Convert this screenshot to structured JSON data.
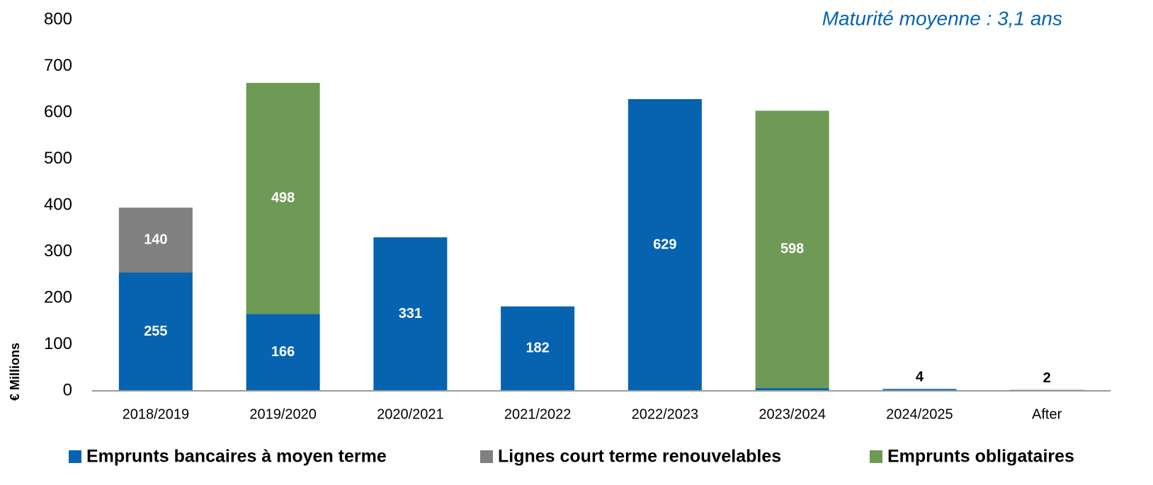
{
  "chart_data": {
    "type": "stacked-bar",
    "subtitle": "Maturité moyenne : 3,1 ans",
    "y_label": "€ Millions",
    "categories": [
      "2018/2019",
      "2019/2020",
      "2020/2021",
      "2021/2022",
      "2022/2023",
      "2023/2024",
      "2024/2025",
      "After"
    ],
    "series": [
      {
        "name": "Emprunts bancaires à moyen terme",
        "color": "#0563b0",
        "values": [
          255,
          166,
          331,
          182,
          629,
          6,
          4,
          2
        ]
      },
      {
        "name": "Lignes court terme renouvelables",
        "color": "#808080",
        "values": [
          140,
          null,
          null,
          null,
          null,
          null,
          null,
          null
        ]
      },
      {
        "name": "Emprunts obligataires",
        "color": "#6e9a55",
        "values": [
          null,
          498,
          null,
          null,
          null,
          598,
          null,
          null
        ]
      }
    ],
    "ylim": [
      0,
      800
    ],
    "yticks": [
      0,
      100,
      200,
      300,
      400,
      500,
      600,
      700,
      800
    ],
    "grid": false
  }
}
